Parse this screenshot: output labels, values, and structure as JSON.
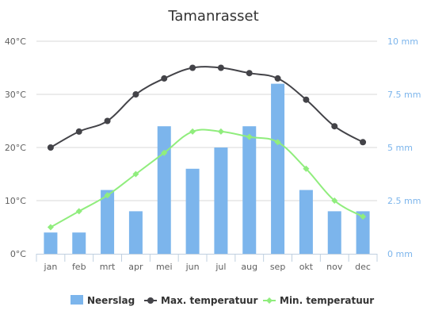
{
  "chart_data": {
    "type": "bar+line",
    "title": "Tamanrasset",
    "categories": [
      "jan",
      "feb",
      "mrt",
      "apr",
      "mei",
      "jun",
      "jul",
      "aug",
      "sep",
      "okt",
      "nov",
      "dec"
    ],
    "y_left": {
      "min": 0,
      "max": 40,
      "ticks": [
        0,
        10,
        20,
        30,
        40
      ],
      "tick_labels": [
        "0°C",
        "10°C",
        "20°C",
        "30°C",
        "40°C"
      ]
    },
    "y_right": {
      "min": 0,
      "max": 10,
      "ticks": [
        0,
        2.5,
        5,
        7.5,
        10
      ],
      "tick_labels": [
        "0 mm",
        "2.5 mm",
        "5 mm",
        "7.5 mm",
        "10 mm"
      ]
    },
    "grid": true,
    "legend_position": "bottom",
    "series": [
      {
        "name": "Neerslag",
        "type": "bar",
        "axis": "right",
        "color": "#7cb5ec",
        "values": [
          1,
          1,
          3,
          2,
          6,
          4,
          5,
          6,
          8,
          3,
          2,
          2
        ]
      },
      {
        "name": "Max. temperatuur",
        "type": "spline",
        "axis": "left",
        "color": "#434348",
        "marker": "circle",
        "values": [
          20,
          23,
          25,
          30,
          33,
          35,
          35,
          34,
          33,
          29,
          24,
          21
        ]
      },
      {
        "name": "Min. temperatuur",
        "type": "spline",
        "axis": "left",
        "color": "#90ed7d",
        "marker": "diamond",
        "values": [
          5,
          8,
          11,
          15,
          19,
          23,
          23,
          22,
          21,
          16,
          10,
          7
        ]
      }
    ],
    "colors": {
      "right_axis_text": "#7cb5ec",
      "grid": "#d8d8d8",
      "axis_line": "#c0d0e0"
    }
  }
}
